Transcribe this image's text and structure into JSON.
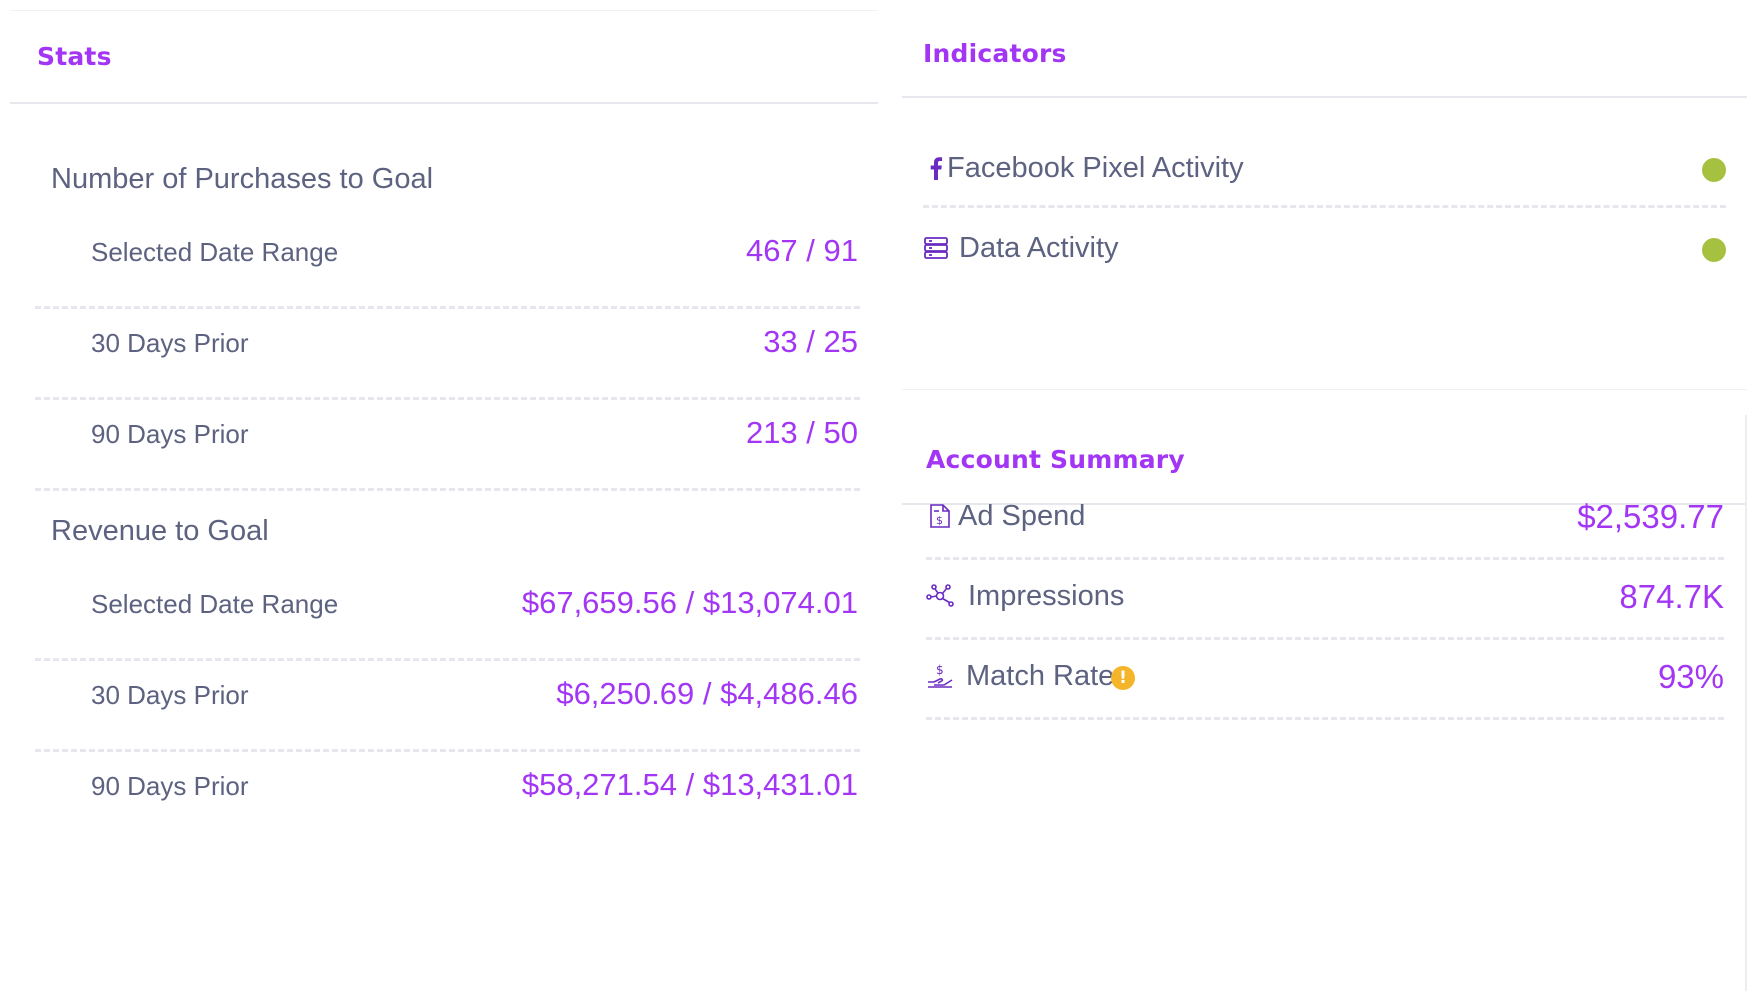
{
  "stats": {
    "title": "Stats",
    "purchases": {
      "title": "Number of Purchases to Goal",
      "rows": [
        {
          "label": "Selected Date Range",
          "value": "467 / 91"
        },
        {
          "label": "30 Days Prior",
          "value": "33 / 25"
        },
        {
          "label": "90 Days Prior",
          "value": "213 / 50"
        }
      ]
    },
    "revenue": {
      "title": "Revenue to Goal",
      "rows": [
        {
          "label": "Selected Date Range",
          "value": "$67,659.56 / $13,074.01"
        },
        {
          "label": "30 Days Prior",
          "value": "$6,250.69 / $4,486.46"
        },
        {
          "label": "90 Days Prior",
          "value": "$58,271.54 / $13,431.01"
        }
      ]
    }
  },
  "indicators": {
    "title": "Indicators",
    "items": [
      {
        "label": "Facebook Pixel Activity",
        "icon": "facebook-icon",
        "status_color": "#a6c13f"
      },
      {
        "label": "Data Activity",
        "icon": "server-icon",
        "status_color": "#a6c13f"
      }
    ]
  },
  "summary": {
    "title": "Account Summary",
    "items": [
      {
        "label": "Ad Spend",
        "value": "$2,539.77",
        "icon": "invoice-dollar-icon"
      },
      {
        "label": "Impressions",
        "value": "874.7K",
        "icon": "network-nodes-icon"
      },
      {
        "label": "Match Rate",
        "value": "93%",
        "icon": "hand-dollar-icon",
        "info_icon": "warning-icon",
        "info_glyph": "!"
      }
    ]
  },
  "colors": {
    "accent": "#a335f5",
    "text": "#5d6280",
    "status_ok": "#a6c13f",
    "warning": "#f5b52a"
  }
}
